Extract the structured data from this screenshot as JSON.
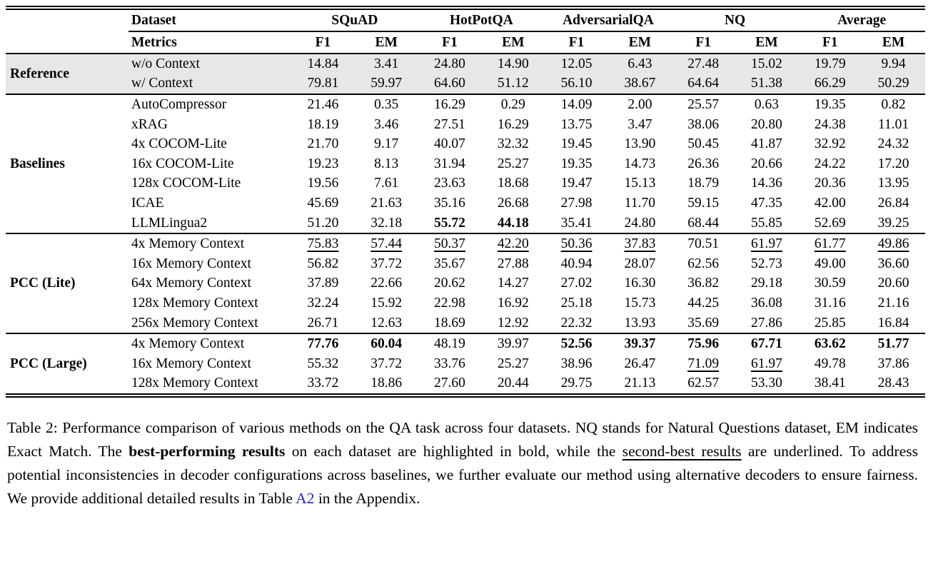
{
  "colors": {
    "row_shade": "#e7e7e7",
    "link": "#2727b2",
    "rule": "#000000"
  },
  "table": {
    "header": {
      "dataset_label": "Dataset",
      "metrics_label": "Metrics",
      "datasets": [
        "SQuAD",
        "HotPotQA",
        "AdversarialQA",
        "NQ",
        "Average"
      ],
      "metric_labels": {
        "f1": "F1",
        "em": "EM"
      }
    },
    "sections": [
      {
        "label": "Reference",
        "shaded": true,
        "rows": [
          {
            "method": "w/o Context",
            "values": [
              "14.84",
              "3.41",
              "24.80",
              "14.90",
              "12.05",
              "6.43",
              "27.48",
              "15.02",
              "19.79",
              "9.94"
            ],
            "styles": [
              "",
              "",
              "",
              "",
              "",
              "",
              "",
              "",
              "",
              ""
            ]
          },
          {
            "method": "w/ Context",
            "values": [
              "79.81",
              "59.97",
              "64.60",
              "51.12",
              "56.10",
              "38.67",
              "64.64",
              "51.38",
              "66.29",
              "50.29"
            ],
            "styles": [
              "",
              "",
              "",
              "",
              "",
              "",
              "",
              "",
              "",
              ""
            ]
          }
        ]
      },
      {
        "label": "Baselines",
        "shaded": false,
        "rows": [
          {
            "method": "AutoCompressor",
            "values": [
              "21.46",
              "0.35",
              "16.29",
              "0.29",
              "14.09",
              "2.00",
              "25.57",
              "0.63",
              "19.35",
              "0.82"
            ],
            "styles": [
              "",
              "",
              "",
              "",
              "",
              "",
              "",
              "",
              "",
              ""
            ]
          },
          {
            "method": "xRAG",
            "values": [
              "18.19",
              "3.46",
              "27.51",
              "16.29",
              "13.75",
              "3.47",
              "38.06",
              "20.80",
              "24.38",
              "11.01"
            ],
            "styles": [
              "",
              "",
              "",
              "",
              "",
              "",
              "",
              "",
              "",
              ""
            ]
          },
          {
            "method": "4x COCOM-Lite",
            "values": [
              "21.70",
              "9.17",
              "40.07",
              "32.32",
              "19.45",
              "13.90",
              "50.45",
              "41.87",
              "32.92",
              "24.32"
            ],
            "styles": [
              "",
              "",
              "",
              "",
              "",
              "",
              "",
              "",
              "",
              ""
            ]
          },
          {
            "method": "16x COCOM-Lite",
            "values": [
              "19.23",
              "8.13",
              "31.94",
              "25.27",
              "19.35",
              "14.73",
              "26.36",
              "20.66",
              "24.22",
              "17.20"
            ],
            "styles": [
              "",
              "",
              "",
              "",
              "",
              "",
              "",
              "",
              "",
              ""
            ]
          },
          {
            "method": "128x COCOM-Lite",
            "values": [
              "19.56",
              "7.61",
              "23.63",
              "18.68",
              "19.47",
              "15.13",
              "18.79",
              "14.36",
              "20.36",
              "13.95"
            ],
            "styles": [
              "",
              "",
              "",
              "",
              "",
              "",
              "",
              "",
              "",
              ""
            ]
          },
          {
            "method": "ICAE",
            "values": [
              "45.69",
              "21.63",
              "35.16",
              "26.68",
              "27.98",
              "11.70",
              "59.15",
              "47.35",
              "42.00",
              "26.84"
            ],
            "styles": [
              "",
              "",
              "",
              "",
              "",
              "",
              "",
              "",
              "",
              ""
            ]
          },
          {
            "method": "LLMLingua2",
            "values": [
              "51.20",
              "32.18",
              "55.72",
              "44.18",
              "35.41",
              "24.80",
              "68.44",
              "55.85",
              "52.69",
              "39.25"
            ],
            "styles": [
              "",
              "",
              "b",
              "b",
              "",
              "",
              "",
              "",
              "",
              ""
            ]
          }
        ]
      },
      {
        "label": "PCC (Lite)",
        "shaded": false,
        "rows": [
          {
            "method": "4x Memory Context",
            "values": [
              "75.83",
              "57.44",
              "50.37",
              "42.20",
              "50.36",
              "37.83",
              "70.51",
              "61.97",
              "61.77",
              "49.86"
            ],
            "styles": [
              "u",
              "u",
              "u",
              "u",
              "u",
              "u",
              "",
              "u",
              "u",
              "u"
            ]
          },
          {
            "method": "16x Memory Context",
            "values": [
              "56.82",
              "37.72",
              "35.67",
              "27.88",
              "40.94",
              "28.07",
              "62.56",
              "52.73",
              "49.00",
              "36.60"
            ],
            "styles": [
              "",
              "",
              "",
              "",
              "",
              "",
              "",
              "",
              "",
              ""
            ]
          },
          {
            "method": "64x Memory Context",
            "values": [
              "37.89",
              "22.66",
              "20.62",
              "14.27",
              "27.02",
              "16.30",
              "36.82",
              "29.18",
              "30.59",
              "20.60"
            ],
            "styles": [
              "",
              "",
              "",
              "",
              "",
              "",
              "",
              "",
              "",
              ""
            ]
          },
          {
            "method": "128x Memory Context",
            "values": [
              "32.24",
              "15.92",
              "22.98",
              "16.92",
              "25.18",
              "15.73",
              "44.25",
              "36.08",
              "31.16",
              "21.16"
            ],
            "styles": [
              "",
              "",
              "",
              "",
              "",
              "",
              "",
              "",
              "",
              ""
            ]
          },
          {
            "method": "256x Memory Context",
            "values": [
              "26.71",
              "12.63",
              "18.69",
              "12.92",
              "22.32",
              "13.93",
              "35.69",
              "27.86",
              "25.85",
              "16.84"
            ],
            "styles": [
              "",
              "",
              "",
              "",
              "",
              "",
              "",
              "",
              "",
              ""
            ]
          }
        ]
      },
      {
        "label": "PCC (Large)",
        "shaded": false,
        "rows": [
          {
            "method": "4x Memory Context",
            "values": [
              "77.76",
              "60.04",
              "48.19",
              "39.97",
              "52.56",
              "39.37",
              "75.96",
              "67.71",
              "63.62",
              "51.77"
            ],
            "styles": [
              "b",
              "b",
              "",
              "",
              "b",
              "b",
              "b",
              "b",
              "b",
              "b"
            ]
          },
          {
            "method": "16x Memory Context",
            "values": [
              "55.32",
              "37.72",
              "33.76",
              "25.27",
              "38.96",
              "26.47",
              "71.09",
              "61.97",
              "49.78",
              "37.86"
            ],
            "styles": [
              "",
              "",
              "",
              "",
              "",
              "",
              "u",
              "u",
              "",
              ""
            ]
          },
          {
            "method": "128x Memory Context",
            "values": [
              "33.72",
              "18.86",
              "27.60",
              "20.44",
              "29.75",
              "21.13",
              "62.57",
              "53.30",
              "38.41",
              "28.43"
            ],
            "styles": [
              "",
              "",
              "",
              "",
              "",
              "",
              "",
              "",
              "",
              ""
            ]
          }
        ]
      }
    ]
  },
  "caption": {
    "segments": [
      {
        "text": "Table 2: Performance comparison of various methods on the QA task across four datasets. NQ stands for Natural Questions dataset, EM indicates Exact Match. The ",
        "style": ""
      },
      {
        "text": "best-performing results",
        "style": "bold"
      },
      {
        "text": " on each dataset are highlighted in bold, while the ",
        "style": ""
      },
      {
        "text": "second-best results",
        "style": "underline"
      },
      {
        "text": " are underlined. To address potential inconsistencies in decoder configurations across baselines, we further evaluate our method using alternative decoders to ensure fairness. We provide additional detailed results in Table ",
        "style": ""
      },
      {
        "text": "A2",
        "style": "link"
      },
      {
        "text": " in the Appendix.",
        "style": ""
      }
    ]
  }
}
